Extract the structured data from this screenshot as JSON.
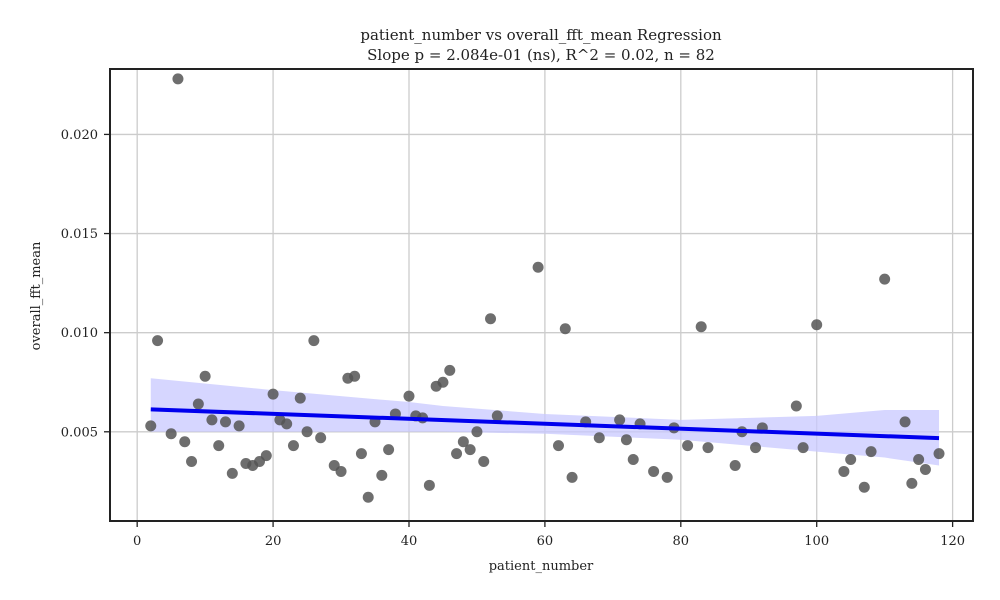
{
  "chart_data": {
    "type": "scatter",
    "title": "patient_number vs overall_fft_mean Regression",
    "subtitle": "Slope p = 2.084e-01 (ns), R^2 = 0.02, n = 82",
    "xlabel": "patient_number",
    "ylabel": "overall_fft_mean",
    "xlim": [
      -4,
      123
    ],
    "ylim": [
      0.0005,
      0.0233
    ],
    "xticks": [
      0,
      20,
      40,
      60,
      80,
      100,
      120
    ],
    "xtick_labels": [
      "0",
      "20",
      "40",
      "60",
      "80",
      "100",
      "120"
    ],
    "yticks": [
      0.005,
      0.01,
      0.015,
      0.02
    ],
    "ytick_labels": [
      "0.005",
      "0.010",
      "0.015",
      "0.020"
    ],
    "grid": true,
    "colors": {
      "points": "#555555",
      "regression_line": "#0000ee",
      "confidence_band": "#c8c8ff",
      "grid": "#cccccc",
      "frame": "#222222"
    },
    "series": [
      {
        "x": [
          2,
          3,
          5,
          6,
          7,
          8,
          9,
          10,
          11,
          12,
          13,
          14,
          15,
          16,
          17,
          18,
          19,
          20,
          21,
          22,
          23,
          24,
          25,
          26,
          27,
          29,
          30,
          31,
          32,
          33,
          34,
          35,
          36,
          37,
          38,
          40,
          41,
          42,
          43,
          44,
          45,
          46,
          47,
          48,
          49,
          50,
          51,
          52,
          53,
          59,
          62,
          63,
          64,
          66,
          68,
          71,
          72,
          73,
          74,
          76,
          78,
          79,
          81,
          83,
          84,
          88,
          89,
          91,
          92,
          97,
          98,
          100,
          104,
          105,
          107,
          108,
          110,
          113,
          114,
          115,
          116,
          118
        ],
        "y": [
          0.0053,
          0.0096,
          0.0049,
          0.0228,
          0.0045,
          0.0035,
          0.0064,
          0.0078,
          0.0056,
          0.0043,
          0.0055,
          0.0029,
          0.0053,
          0.0034,
          0.0033,
          0.0035,
          0.0038,
          0.0069,
          0.0056,
          0.0054,
          0.0043,
          0.0067,
          0.005,
          0.0096,
          0.0047,
          0.0033,
          0.003,
          0.0077,
          0.0078,
          0.0039,
          0.0017,
          0.0055,
          0.0028,
          0.0041,
          0.0059,
          0.0068,
          0.0058,
          0.0057,
          0.0023,
          0.0073,
          0.0075,
          0.0081,
          0.0039,
          0.0045,
          0.0041,
          0.005,
          0.0035,
          0.0107,
          0.0058,
          0.0133,
          0.0043,
          0.0102,
          0.0027,
          0.0055,
          0.0047,
          0.0056,
          0.0046,
          0.0036,
          0.0054,
          0.003,
          0.0027,
          0.0052,
          0.0043,
          0.0103,
          0.0042,
          0.0033,
          0.005,
          0.0042,
          0.0052,
          0.0063,
          0.0042,
          0.0104,
          0.003,
          0.0036,
          0.0022,
          0.004,
          0.0127,
          0.0055,
          0.0024,
          0.0036,
          0.0031,
          0.0039
        ]
      }
    ],
    "regression": {
      "x": [
        2,
        118
      ],
      "y": [
        0.00613,
        0.00468
      ]
    },
    "confidence_band": {
      "x": [
        2,
        20,
        40,
        45,
        60,
        80,
        100,
        110,
        118
      ],
      "upper": [
        0.0077,
        0.0071,
        0.0065,
        0.0063,
        0.0059,
        0.0056,
        0.0058,
        0.0061,
        0.0061
      ],
      "lower": [
        0.005,
        0.005,
        0.005,
        0.005,
        0.0049,
        0.0046,
        0.004,
        0.0037,
        0.0033
      ]
    }
  }
}
